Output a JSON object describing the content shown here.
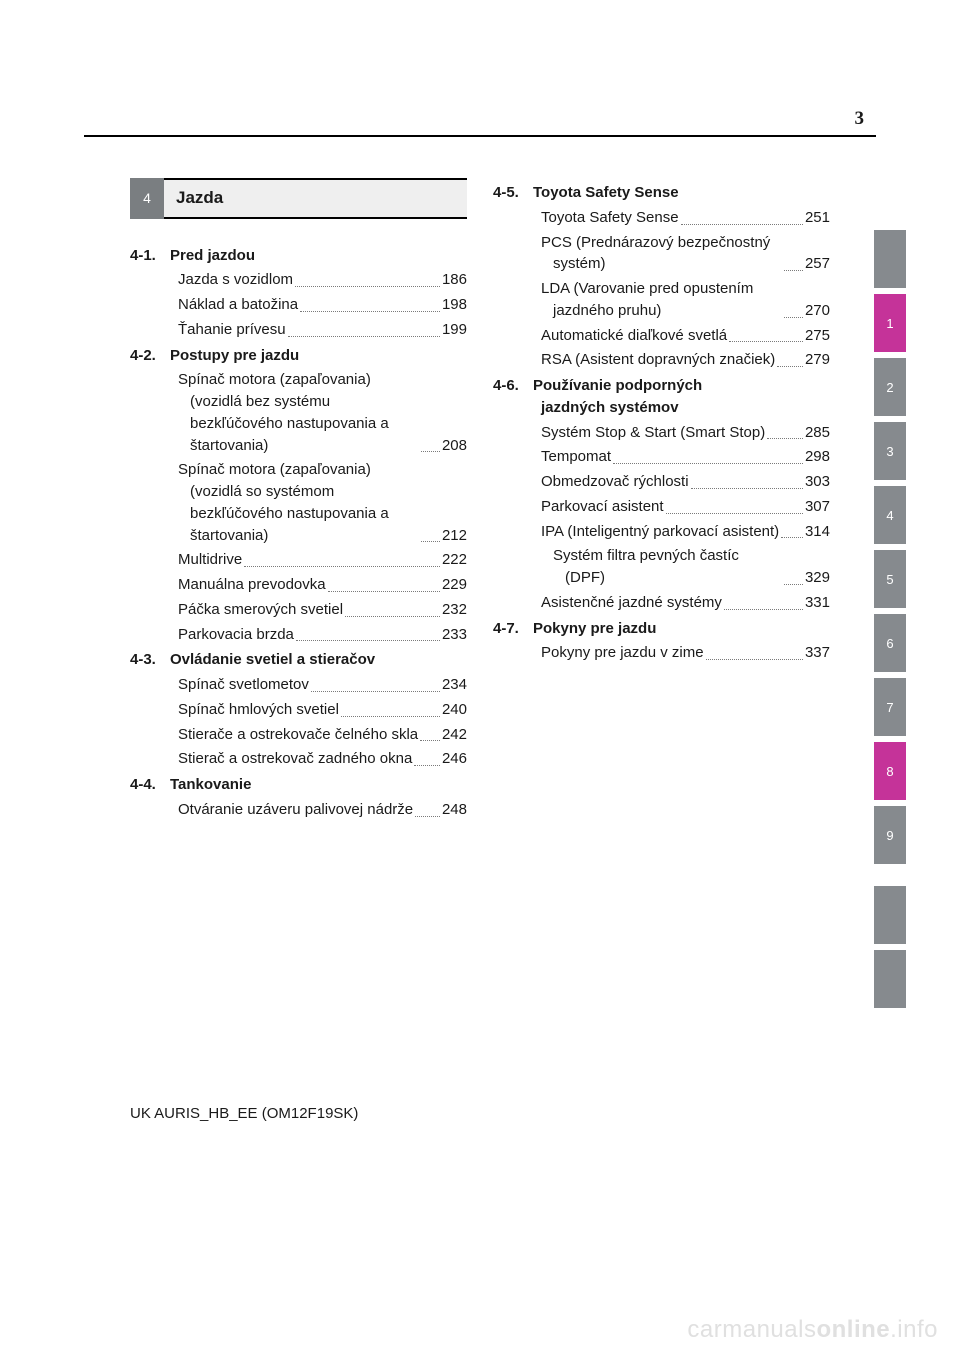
{
  "page_number": "3",
  "chapter": {
    "num": "4",
    "title": "Jazda"
  },
  "columns": {
    "left": [
      {
        "type": "section",
        "num": "4-1.",
        "title": "Pred jazdou"
      },
      {
        "type": "entry",
        "title": "Jazda s vozidlom",
        "page": "186"
      },
      {
        "type": "entry",
        "title": "Náklad a batožina",
        "page": "198"
      },
      {
        "type": "entry",
        "title": "Ťahanie prívesu",
        "page": "199"
      },
      {
        "type": "section",
        "num": "4-2.",
        "title": "Postupy pre jazdu"
      },
      {
        "type": "entry",
        "title": "Spínač motora (zapaľovania) (vozidlá bez systému bezkľúčového nastupovania a štartovania)",
        "page": "208",
        "multi": true
      },
      {
        "type": "entry",
        "title": "Spínač motora (zapaľovania) (vozidlá so systémom bezkľúčového nastupovania a štartovania)",
        "page": "212",
        "multi": true
      },
      {
        "type": "entry",
        "title": "Multidrive",
        "page": "222"
      },
      {
        "type": "entry",
        "title": "Manuálna prevodovka",
        "page": "229"
      },
      {
        "type": "entry",
        "title": "Páčka smerových svetiel",
        "page": "232"
      },
      {
        "type": "entry",
        "title": "Parkovacia brzda",
        "page": "233"
      },
      {
        "type": "section",
        "num": "4-3.",
        "title": "Ovládanie svetiel a stieračov"
      },
      {
        "type": "entry",
        "title": "Spínač svetlometov",
        "page": "234"
      },
      {
        "type": "entry",
        "title": "Spínač hmlových svetiel",
        "page": "240"
      },
      {
        "type": "entry",
        "title": "Stierače a ostrekovače čelného skla",
        "page": "242",
        "multi": true
      },
      {
        "type": "entry",
        "title": "Stierač a ostrekovač zadného okna",
        "page": "246",
        "multi": true
      },
      {
        "type": "section",
        "num": "4-4.",
        "title": "Tankovanie"
      },
      {
        "type": "entry",
        "title": "Otváranie uzáveru palivovej nádrže",
        "page": "248",
        "multi": true
      }
    ],
    "right": [
      {
        "type": "section",
        "num": "4-5.",
        "title": "Toyota Safety Sense"
      },
      {
        "type": "entry",
        "title": "Toyota Safety Sense",
        "page": "251"
      },
      {
        "type": "entry",
        "title": "PCS (Prednárazový bezpečnostný systém)",
        "page": "257",
        "multi": true
      },
      {
        "type": "entry",
        "title": "LDA (Varovanie pred opustením jazdného pruhu)",
        "page": "270",
        "multi": true
      },
      {
        "type": "entry",
        "title": "Automatické diaľkové svetlá",
        "page": "275",
        "multi": true
      },
      {
        "type": "entry",
        "title": "RSA (Asistent dopravných značiek)",
        "page": "279",
        "multi": true
      },
      {
        "type": "section",
        "num": "4-6.",
        "title": "Používanie podporných",
        "title2": "jazdných systémov"
      },
      {
        "type": "entry",
        "title": "Systém Stop & Start (Smart Stop)",
        "page": "285",
        "multi": true
      },
      {
        "type": "entry",
        "title": "Tempomat",
        "page": "298"
      },
      {
        "type": "entry",
        "title": "Obmedzovač rýchlosti",
        "page": "303"
      },
      {
        "type": "entry",
        "title": "Parkovací asistent",
        "page": "307"
      },
      {
        "type": "entry",
        "title": "IPA (Inteligentný parkovací asistent)",
        "page": "314",
        "multi": true
      },
      {
        "type": "entry",
        "title": "Systém filtra pevných častíc (DPF)",
        "page": "329",
        "multi": true,
        "extra_indent": true
      },
      {
        "type": "entry",
        "title": "Asistenčné jazdné systémy",
        "page": "331",
        "multi": true
      },
      {
        "type": "section",
        "num": "4-7.",
        "title": "Pokyny pre jazdu"
      },
      {
        "type": "entry",
        "title": "Pokyny pre jazdu v zime",
        "page": "337"
      }
    ]
  },
  "tabs": [
    {
      "n": "",
      "color": "#868a8e"
    },
    {
      "n": "1",
      "color": "#c53399"
    },
    {
      "n": "2",
      "color": "#868a8e"
    },
    {
      "n": "3",
      "color": "#868a8e"
    },
    {
      "n": "4",
      "color": "#868a8e"
    },
    {
      "n": "5",
      "color": "#868a8e"
    },
    {
      "n": "6",
      "color": "#868a8e"
    },
    {
      "n": "7",
      "color": "#868a8e"
    },
    {
      "n": "8",
      "color": "#c53399"
    },
    {
      "n": "9",
      "color": "#868a8e"
    }
  ],
  "tabs_bottom": [
    {
      "n": "",
      "color": "#868a8e"
    },
    {
      "n": "",
      "color": "#868a8e"
    }
  ],
  "footer": "UK AURIS_HB_EE (OM12F19SK)",
  "watermark_a": "carmanuals",
  "watermark_b": "online",
  "watermark_c": ".info"
}
